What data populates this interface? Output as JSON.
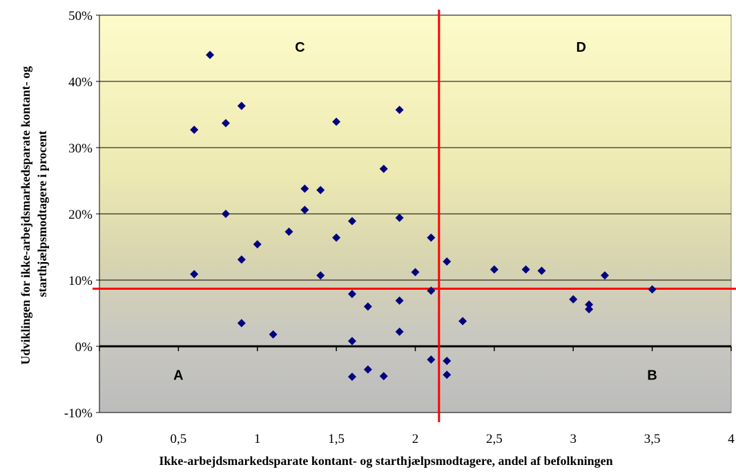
{
  "chart_data": {
    "type": "scatter",
    "title": "",
    "xlabel": "Ikke-arbejdsmarkedsparate kontant- og starthjælpsmodtagere, andel af befolkningen",
    "ylabel_lines": [
      "Udviklingen for ikke-arbejdsmarkedsparate kontant- og",
      "starthjælpsmodtagere i  procent"
    ],
    "xlim": [
      0,
      4
    ],
    "ylim": [
      -10,
      50
    ],
    "x_ticks": [
      "0",
      "0,5",
      "1",
      "1,5",
      "2",
      "2,5",
      "3",
      "3,5",
      "4"
    ],
    "y_ticks": [
      "-10%",
      "0%",
      "10%",
      "20%",
      "30%",
      "40%",
      "50%"
    ],
    "y_tick_values": [
      -10,
      0,
      10,
      20,
      30,
      40,
      50
    ],
    "x_tick_values": [
      0,
      0.5,
      1,
      1.5,
      2,
      2.5,
      3,
      3.5,
      4
    ],
    "reference_lines": {
      "vertical_x": 2.15,
      "horizontal_y": 8.7
    },
    "quadrant_labels": [
      {
        "label": "A",
        "x": 0.5,
        "y": -4.3
      },
      {
        "label": "B",
        "x": 3.5,
        "y": -4.3
      },
      {
        "label": "C",
        "x": 1.27,
        "y": 45.2
      },
      {
        "label": "D",
        "x": 3.05,
        "y": 45.2
      }
    ],
    "marker_color": "#000080",
    "reference_line_color": "#ff0000",
    "grid": true,
    "series": [
      {
        "points": [
          [
            0.6,
            32.7
          ],
          [
            0.6,
            10.9
          ],
          [
            0.7,
            44.0
          ],
          [
            0.8,
            33.7
          ],
          [
            0.8,
            20.0
          ],
          [
            0.9,
            36.3
          ],
          [
            0.9,
            13.1
          ],
          [
            0.9,
            3.5
          ],
          [
            1.0,
            15.4
          ],
          [
            1.1,
            1.8
          ],
          [
            1.2,
            17.3
          ],
          [
            1.3,
            23.8
          ],
          [
            1.3,
            20.6
          ],
          [
            1.4,
            23.6
          ],
          [
            1.4,
            10.7
          ],
          [
            1.5,
            33.9
          ],
          [
            1.5,
            16.4
          ],
          [
            1.6,
            18.9
          ],
          [
            1.6,
            7.9
          ],
          [
            1.6,
            0.8
          ],
          [
            1.6,
            -4.6
          ],
          [
            1.7,
            6.0
          ],
          [
            1.7,
            -3.5
          ],
          [
            1.8,
            26.8
          ],
          [
            1.8,
            -4.5
          ],
          [
            1.9,
            35.7
          ],
          [
            1.9,
            19.4
          ],
          [
            1.9,
            6.9
          ],
          [
            1.9,
            2.2
          ],
          [
            2.0,
            11.2
          ],
          [
            2.1,
            16.4
          ],
          [
            2.1,
            8.4
          ],
          [
            2.1,
            -2.0
          ],
          [
            2.2,
            12.8
          ],
          [
            2.2,
            -2.2
          ],
          [
            2.2,
            -4.3
          ],
          [
            2.3,
            3.8
          ],
          [
            2.5,
            11.6
          ],
          [
            2.7,
            11.6
          ],
          [
            2.8,
            11.4
          ],
          [
            3.0,
            7.1
          ],
          [
            3.1,
            6.3
          ],
          [
            3.1,
            5.6
          ],
          [
            3.2,
            10.7
          ],
          [
            3.5,
            8.6
          ]
        ]
      }
    ]
  }
}
